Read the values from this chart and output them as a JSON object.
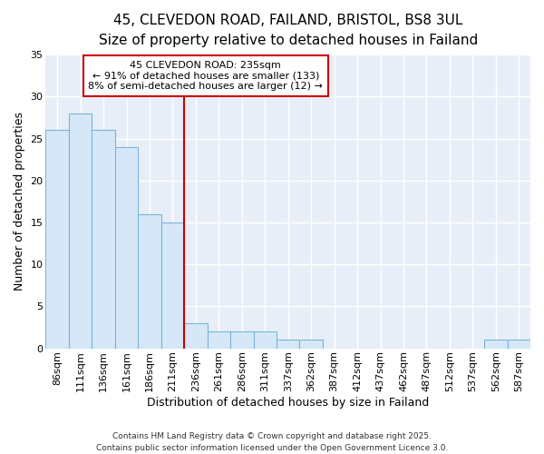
{
  "title_line1": "45, CLEVEDON ROAD, FAILAND, BRISTOL, BS8 3UL",
  "title_line2": "Size of property relative to detached houses in Failand",
  "xlabel": "Distribution of detached houses by size in Failand",
  "ylabel": "Number of detached properties",
  "bin_labels": [
    "86sqm",
    "111sqm",
    "136sqm",
    "161sqm",
    "186sqm",
    "211sqm",
    "236sqm",
    "261sqm",
    "286sqm",
    "311sqm",
    "337sqm",
    "362sqm",
    "387sqm",
    "412sqm",
    "437sqm",
    "462sqm",
    "487sqm",
    "512sqm",
    "537sqm",
    "562sqm",
    "587sqm"
  ],
  "values": [
    26,
    28,
    26,
    24,
    16,
    15,
    3,
    2,
    2,
    2,
    1,
    1,
    0,
    0,
    0,
    0,
    0,
    0,
    0,
    1,
    1
  ],
  "bar_color": "#d6e8f7",
  "bar_edge_color": "#7ab3d9",
  "bar_width": 1.0,
  "vline_color": "#cc0000",
  "annotation_text": "45 CLEVEDON ROAD: 235sqm\n← 91% of detached houses are smaller (133)\n8% of semi-detached houses are larger (12) →",
  "annotation_box_color": "#ffffff",
  "annotation_box_edge_color": "#cc0000",
  "ylim": [
    0,
    35
  ],
  "yticks": [
    0,
    5,
    10,
    15,
    20,
    25,
    30,
    35
  ],
  "background_color": "#ffffff",
  "plot_bg_color": "#e8eef8",
  "grid_color": "#ffffff",
  "footer_line1": "Contains HM Land Registry data © Crown copyright and database right 2025.",
  "footer_line2": "Contains public sector information licensed under the Open Government Licence 3.0.",
  "title_fontsize": 11,
  "subtitle_fontsize": 10,
  "axis_label_fontsize": 9,
  "tick_fontsize": 8,
  "annotation_fontsize": 8,
  "footer_fontsize": 6.5
}
